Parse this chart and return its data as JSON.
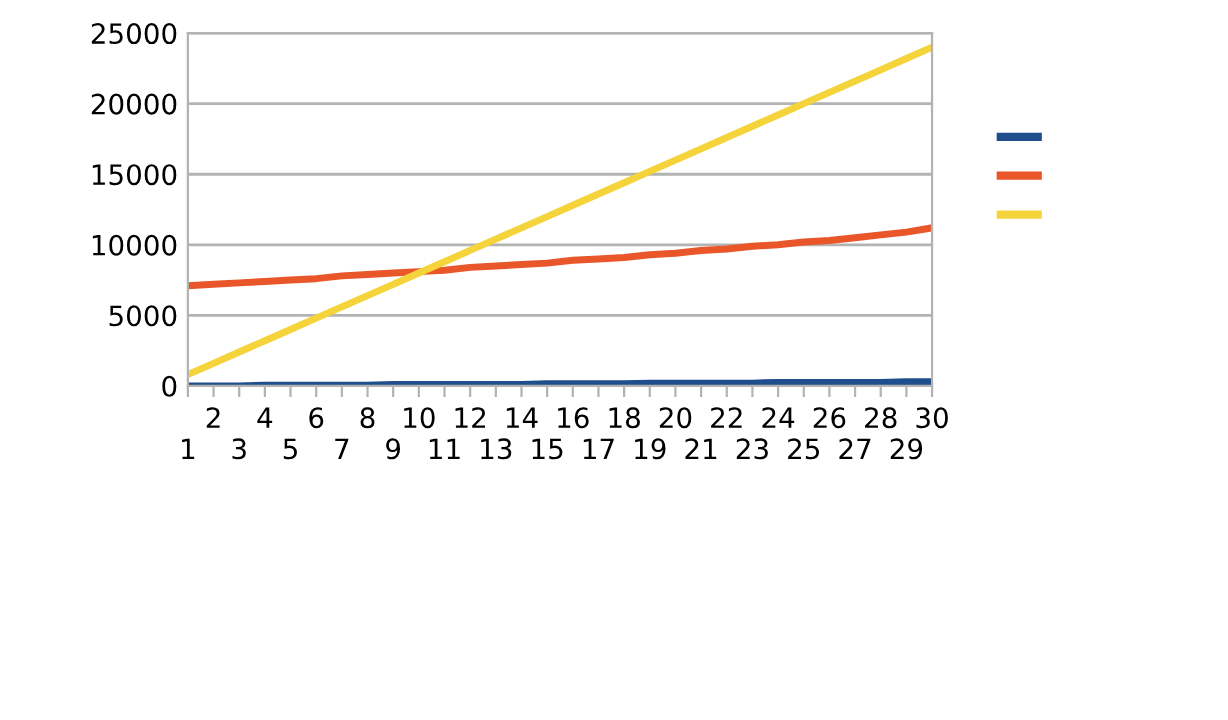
{
  "chart_data": {
    "type": "line",
    "categories": [
      "1",
      "2",
      "3",
      "4",
      "5",
      "6",
      "7",
      "8",
      "9",
      "10",
      "11",
      "12",
      "13",
      "14",
      "15",
      "16",
      "17",
      "18",
      "19",
      "20",
      "21",
      "22",
      "23",
      "24",
      "25",
      "26",
      "27",
      "28",
      "29",
      "30"
    ],
    "series": [
      {
        "color": "#1f4e8c",
        "values": [
          0,
          0,
          0,
          50,
          50,
          50,
          50,
          50,
          100,
          100,
          100,
          100,
          100,
          100,
          150,
          150,
          150,
          150,
          200,
          200,
          200,
          200,
          200,
          250,
          250,
          250,
          250,
          250,
          300,
          300
        ]
      },
      {
        "color": "#e8562a",
        "values": [
          7100,
          7200,
          7300,
          7400,
          7500,
          7600,
          7800,
          7900,
          8000,
          8100,
          8200,
          8400,
          8500,
          8600,
          8700,
          8900,
          9000,
          9100,
          9300,
          9400,
          9600,
          9700,
          9900,
          10000,
          10200,
          10300,
          10500,
          10700,
          10900,
          11200
        ]
      },
      {
        "color": "#f5d33b",
        "values": [
          800,
          1600,
          2400,
          3200,
          4000,
          4800,
          5600,
          6400,
          7200,
          8000,
          8800,
          9600,
          10400,
          11200,
          12000,
          12800,
          13600,
          14400,
          15200,
          16000,
          16800,
          17600,
          18400,
          19200,
          20000,
          20800,
          21600,
          22400,
          23200,
          24000
        ]
      }
    ],
    "ylim": [
      0,
      25000
    ],
    "yticks": [
      0,
      5000,
      10000,
      15000,
      20000,
      25000
    ],
    "grid": "y",
    "marker": "none",
    "line_style": "solid"
  }
}
